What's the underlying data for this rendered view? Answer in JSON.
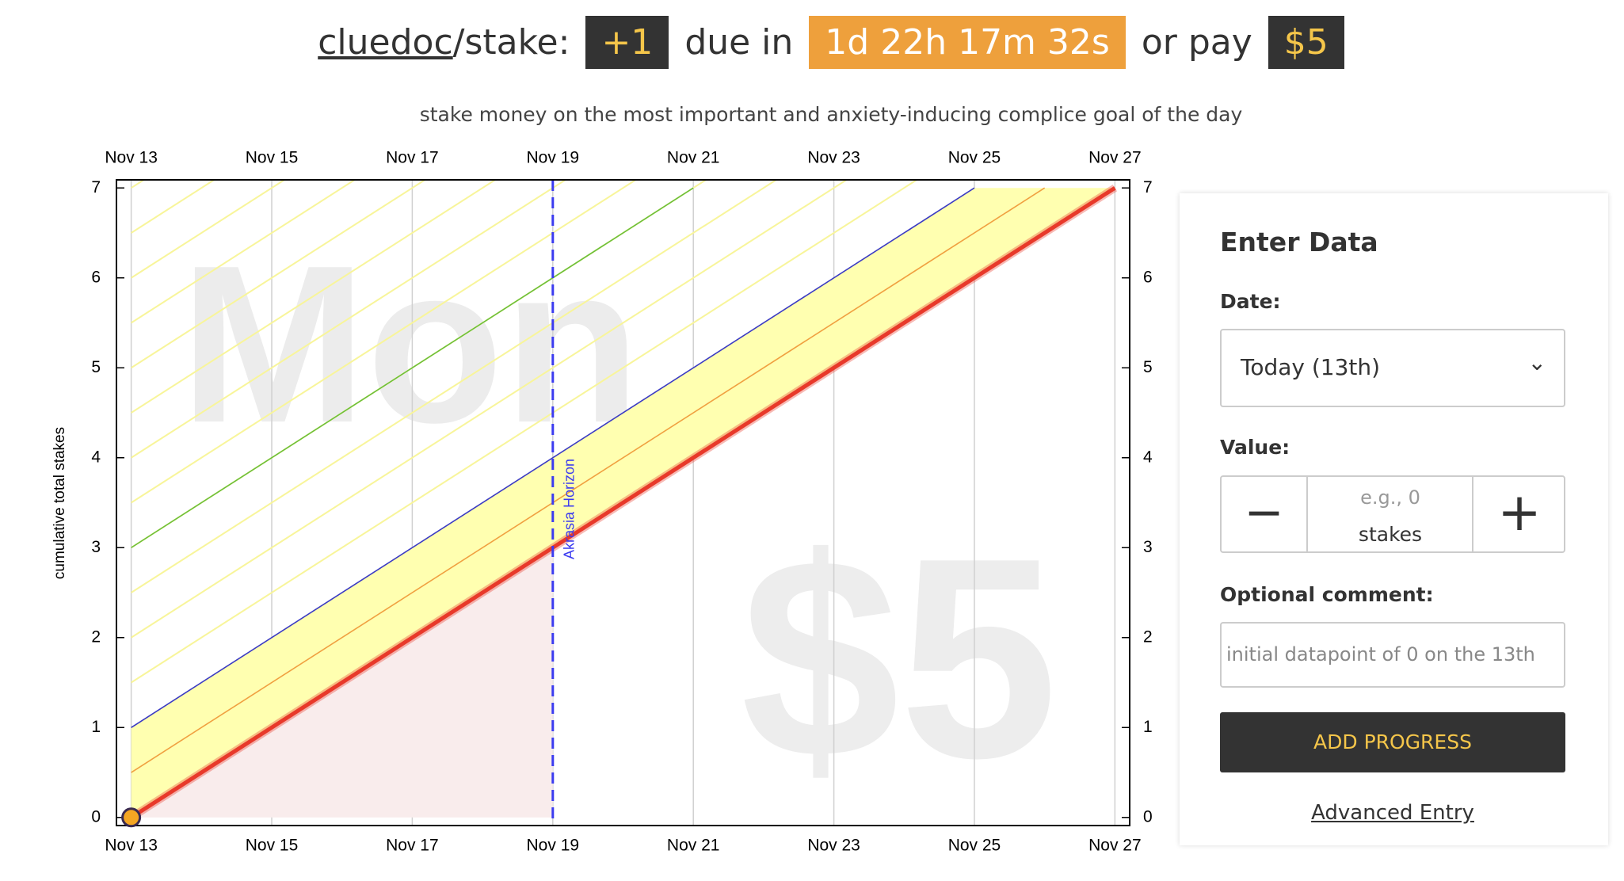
{
  "header": {
    "user": "cluedoc",
    "goal": "/stake:",
    "delta": "+1",
    "due_text": "due in",
    "countdown": "1d 22h 17m 32s",
    "pay_text": "or pay",
    "pledge": "$5",
    "subtitle": "stake money on the most important and anxiety-inducing complice goal of the day"
  },
  "chart_data": {
    "type": "line",
    "ylabel": "cumulative total stakes",
    "watermark": "Mon",
    "horizon_label": "Akrasia Horizon",
    "horizon_x": 19,
    "xlim": [
      12.79,
      27.21
    ],
    "ylim": [
      -0.09,
      7.09
    ],
    "xticks": [
      {
        "value": 13,
        "label": "Nov 13"
      },
      {
        "value": 15,
        "label": "Nov 15"
      },
      {
        "value": 17,
        "label": "Nov 17"
      },
      {
        "value": 19,
        "label": "Nov 19"
      },
      {
        "value": 21,
        "label": "Nov 21"
      },
      {
        "value": 23,
        "label": "Nov 23"
      },
      {
        "value": 25,
        "label": "Nov 25"
      },
      {
        "value": 27,
        "label": "Nov 27"
      }
    ],
    "yticks": [
      0,
      1,
      2,
      3,
      4,
      5,
      6,
      7
    ],
    "series": [
      {
        "color": "#e8392a",
        "x": [
          13,
          27
        ],
        "values": [
          0,
          7
        ]
      },
      {
        "color": "#f0a040",
        "x": [
          13,
          26
        ],
        "values": [
          0.5,
          7
        ]
      },
      {
        "color": "#3b3bc4",
        "x": [
          13,
          25
        ],
        "values": [
          1,
          7
        ]
      },
      {
        "color": "#6cbf3c",
        "x": [
          13,
          21
        ],
        "values": [
          3,
          7
        ]
      }
    ],
    "points": {
      "color": "#f5a623",
      "x": [
        13
      ],
      "values": [
        0
      ]
    }
  },
  "form": {
    "title": "Enter Data",
    "date_label": "Date:",
    "date_value": "Today (13th)",
    "value_label": "Value:",
    "minus": "−",
    "value_placeholder": "e.g., 0",
    "unit": "stakes",
    "plus": "+",
    "comment_label": "Optional comment:",
    "comment_placeholder": "initial datapoint of 0 on the 13th",
    "button": "ADD PROGRESS",
    "advanced": "Advanced Entry"
  }
}
